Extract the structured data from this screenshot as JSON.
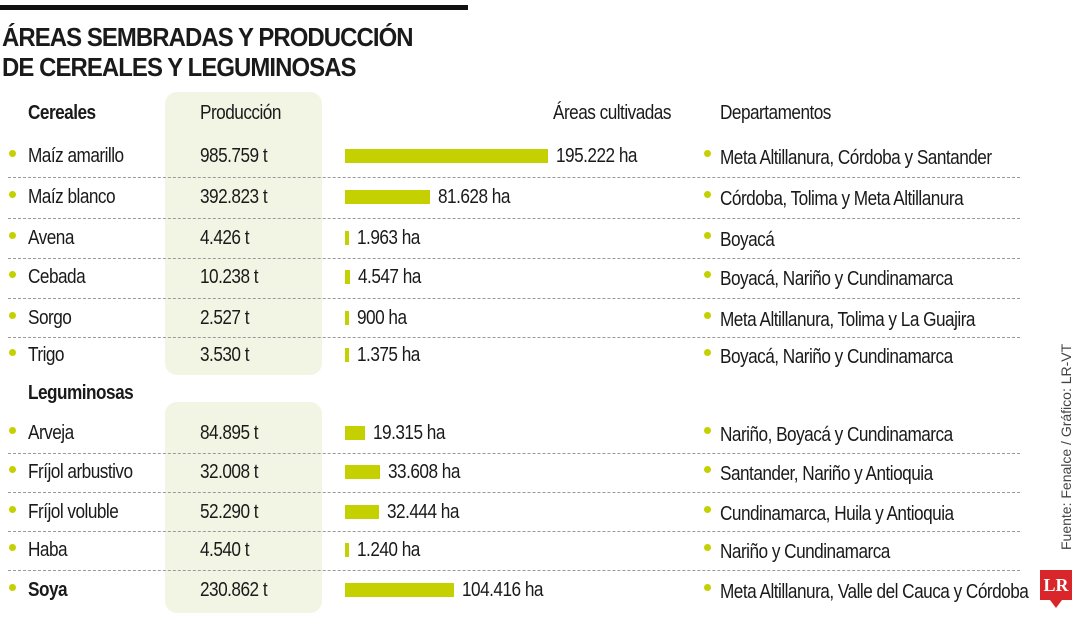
{
  "title_line1": "ÁREAS SEMBRADAS Y PRODUCCIÓN",
  "title_line2": "DE CEREALES Y LEGUMINOSAS",
  "headers": {
    "produccion": "Producción",
    "areas": "Áreas cultivadas",
    "departamentos": "Departamentos"
  },
  "source": "Fuente: Fenalce / Gráfico: LR-VT",
  "logo": "LR",
  "colors": {
    "accent": "#c5d000",
    "box": "#f2f5e4"
  },
  "chart_data": {
    "type": "bar",
    "xlabel": "Áreas cultivadas",
    "unit": "ha",
    "groups": [
      {
        "name": "Cereales",
        "rows": [
          {
            "crop": "Maíz amarillo",
            "produccion": "985.759 t",
            "area": 195222,
            "area_label": "195.222 ha",
            "departamentos": "Meta Altillanura, Córdoba y Santander"
          },
          {
            "crop": "Maíz blanco",
            "produccion": "392.823 t",
            "area": 81628,
            "area_label": "81.628 ha",
            "departamentos": "Córdoba, Tolima y Meta Altillanura"
          },
          {
            "crop": "Avena",
            "produccion": "4.426 t",
            "area": 1963,
            "area_label": "1.963 ha",
            "departamentos": "Boyacá"
          },
          {
            "crop": "Cebada",
            "produccion": "10.238 t",
            "area": 4547,
            "area_label": "4.547 ha",
            "departamentos": "Boyacá, Nariño y Cundinamarca"
          },
          {
            "crop": "Sorgo",
            "produccion": "2.527 t",
            "area": 900,
            "area_label": "900 ha",
            "departamentos": "Meta Altillanura, Tolima y La Guajira"
          },
          {
            "crop": "Trigo",
            "produccion": "3.530 t",
            "area": 1375,
            "area_label": "1.375 ha",
            "departamentos": "Boyacá, Nariño y Cundinamarca"
          }
        ]
      },
      {
        "name": "Leguminosas",
        "rows": [
          {
            "crop": "Arveja",
            "produccion": "84.895 t",
            "area": 19315,
            "area_label": "19.315 ha",
            "departamentos": "Nariño, Boyacá y Cundinamarca"
          },
          {
            "crop": "Fríjol arbustivo",
            "produccion": "32.008 t",
            "area": 33608,
            "area_label": "33.608 ha",
            "departamentos": "Santander, Nariño y Antioquia"
          },
          {
            "crop": "Fríjol voluble",
            "produccion": "52.290 t",
            "area": 32444,
            "area_label": "32.444 ha",
            "departamentos": "Cundinamarca, Huila y Antioquia"
          },
          {
            "crop": "Haba",
            "produccion": "4.540 t",
            "area": 1240,
            "area_label": "1.240 ha",
            "departamentos": "Nariño y Cundinamarca"
          },
          {
            "crop": "Soya",
            "produccion": "230.862 t",
            "area": 104416,
            "area_label": "104.416 ha",
            "departamentos": "Meta Altillanura, Valle del Cauca y Córdoba",
            "bold": true
          }
        ]
      }
    ]
  }
}
